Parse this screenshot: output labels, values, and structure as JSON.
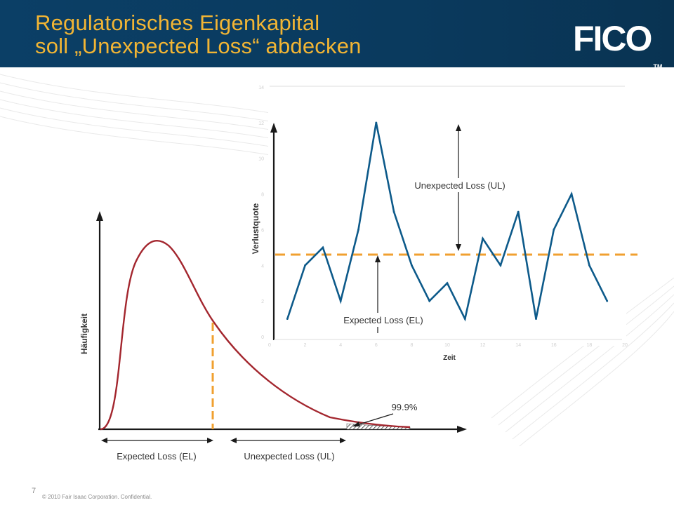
{
  "header": {
    "title_line1": "Regulatorisches Eigenkapital",
    "title_line2": "soll „Unexpected Loss“ abdecken",
    "logo": "FICO",
    "logo_tm": "TM"
  },
  "left_chart": {
    "ylabel": "Häufigkeit",
    "tail_label": "99.9%",
    "el_label": "Expected Loss (EL)",
    "ul_label": "Unexpected Loss (UL)"
  },
  "right_chart": {
    "ylabel": "Verlustquote",
    "xlabel": "Zeit",
    "ul_label": "Unexpected Loss (UL)",
    "el_label": "Expected Loss (EL)",
    "y_ticks": [
      "0",
      "2",
      "4",
      "6",
      "8",
      "10",
      "12",
      "14"
    ],
    "x_ticks": [
      "0",
      "2",
      "4",
      "6",
      "8",
      "10",
      "12",
      "14",
      "16",
      "18",
      "20"
    ]
  },
  "chart_data": {
    "type": "line",
    "x": [
      1,
      2,
      3,
      4,
      5,
      6,
      7,
      8,
      9,
      10,
      11,
      12,
      13,
      14,
      15,
      16,
      17,
      18,
      19
    ],
    "series": [
      {
        "values": [
          1,
          4,
          5,
          2,
          6,
          12,
          7,
          4,
          2,
          3,
          1,
          5.5,
          4,
          7,
          1,
          6,
          8,
          4,
          2
        ]
      }
    ],
    "expected_loss": 4.6,
    "xlim": [
      0,
      20
    ],
    "ylim": [
      0,
      14
    ],
    "xlabel": "Zeit",
    "ylabel": "Verlustquote",
    "colors": {
      "line": "#0d5a8a",
      "el_line": "#f0a030",
      "density": "#a3262e"
    }
  },
  "footer": {
    "page": "7",
    "copyright": "© 2010 Fair Isaac Corporation. Confidential."
  }
}
